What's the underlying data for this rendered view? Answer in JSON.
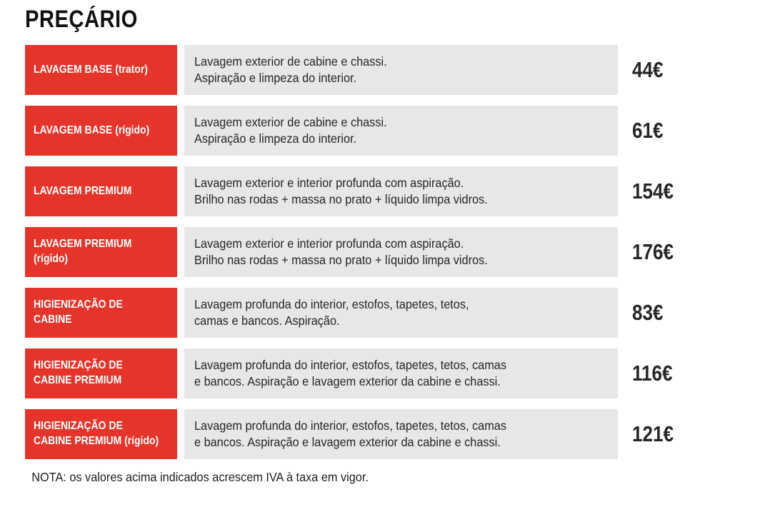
{
  "page": {
    "title": "PREÇÁRIO",
    "note": "NOTA: os valores acima indicados acrescem IVA à taxa em vigor."
  },
  "colors": {
    "accent_red": "#E5352B",
    "row_bg": "#E7E7E5",
    "text_dark": "#262626"
  },
  "rows": [
    {
      "label": "LAVAGEM BASE (trator)",
      "description_line1": "Lavagem exterior de cabine e chassi.",
      "description_line2": "Aspiração e limpeza do interior.",
      "price": "44€"
    },
    {
      "label": "LAVAGEM BASE (rígido)",
      "description_line1": "Lavagem exterior de cabine e chassi.",
      "description_line2": "Aspiração e limpeza do interior.",
      "price": "61€"
    },
    {
      "label": "LAVAGEM PREMIUM",
      "description_line1": "Lavagem exterior e interior profunda com aspiração.",
      "description_line2": "Brilho nas rodas + massa no prato + líquido limpa vidros.",
      "price": "154€"
    },
    {
      "label": "LAVAGEM PREMIUM (rígido)",
      "description_line1": "Lavagem exterior e interior profunda com aspiração.",
      "description_line2": "Brilho nas rodas + massa no prato + líquido limpa vidros.",
      "price": "176€"
    },
    {
      "label": "HIGIENIZAÇÃO DE CABINE",
      "description_line1": "Lavagem profunda do interior, estofos, tapetes, tetos,",
      "description_line2": "camas e bancos. Aspiração.",
      "price": "83€"
    },
    {
      "label": "HIGIENIZAÇÃO DE CABINE PREMIUM",
      "description_line1": "Lavagem profunda do interior, estofos, tapetes, tetos, camas",
      "description_line2": "e bancos. Aspiração e lavagem exterior da cabine e chassi.",
      "price": "116€"
    },
    {
      "label": "HIGIENIZAÇÃO DE CABINE PREMIUM (rígido)",
      "description_line1": "Lavagem profunda do interior, estofos, tapetes, tetos, camas",
      "description_line2": "e bancos. Aspiração e lavagem exterior da cabine e chassi.",
      "price": "121€"
    }
  ]
}
